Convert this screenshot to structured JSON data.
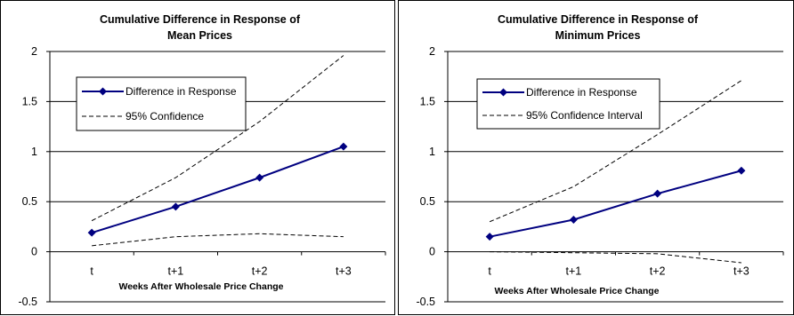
{
  "chart_data": [
    {
      "type": "line",
      "title_lines": [
        "Cumulative Difference in Response of",
        "Mean Prices"
      ],
      "xlabel": "Weeks After Wholesale Price Change",
      "ylabel": "",
      "categories": [
        "t",
        "t+1",
        "t+2",
        "t+3"
      ],
      "ylim": [
        -0.5,
        2
      ],
      "yticks": [
        "-0.5",
        "0",
        "0.5",
        "1",
        "1.5",
        "2"
      ],
      "grid": "horizontal",
      "legend_position": "upper-left",
      "series": [
        {
          "name": "Difference in Response",
          "style": "solid-diamond",
          "color": "#000080",
          "values": [
            0.19,
            0.45,
            0.74,
            1.05
          ]
        },
        {
          "name": "95% Confidence",
          "style": "dashed",
          "color": "#000000",
          "values": [
            0.31,
            0.74,
            1.3,
            1.96
          ]
        },
        {
          "name": "",
          "style": "dashed",
          "color": "#000000",
          "values": [
            0.06,
            0.15,
            0.18,
            0.15
          ]
        }
      ]
    },
    {
      "type": "line",
      "title_lines": [
        "Cumulative Difference in Response of",
        "Minimum Prices"
      ],
      "xlabel": "Weeks After Wholesale Price Change",
      "ylabel": "",
      "categories": [
        "t",
        "t+1",
        "t+2",
        "t+3"
      ],
      "ylim": [
        -0.5,
        2
      ],
      "yticks": [
        "-0.5",
        "0",
        "0.5",
        "1",
        "1.5",
        "2"
      ],
      "grid": "horizontal",
      "legend_position": "upper-left",
      "series": [
        {
          "name": "Difference in Response",
          "style": "solid-diamond",
          "color": "#000080",
          "values": [
            0.15,
            0.32,
            0.58,
            0.81
          ]
        },
        {
          "name": "95% Confidence Interval",
          "style": "dashed",
          "color": "#000000",
          "values": [
            0.3,
            0.65,
            1.17,
            1.71
          ]
        },
        {
          "name": "",
          "style": "dashed",
          "color": "#000000",
          "values": [
            0.0,
            -0.01,
            -0.02,
            -0.11
          ]
        }
      ]
    }
  ]
}
